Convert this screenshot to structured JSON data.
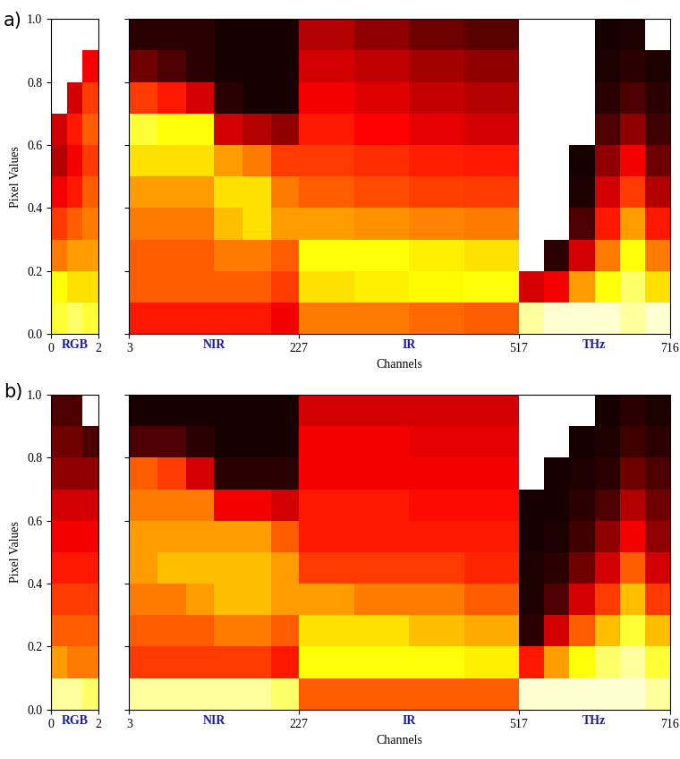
{
  "chart_data": [
    {
      "type": "heatmap",
      "title": "a)",
      "xlabel": "Channels",
      "ylabel": "Pixel Values",
      "ylim": [
        0,
        1
      ],
      "yticks": [
        {
          "value": 0,
          "label": "0.0"
        },
        {
          "value": 0.2,
          "label": "0.2"
        },
        {
          "value": 0.4,
          "label": "0.4"
        },
        {
          "value": 0.6,
          "label": "0.6"
        },
        {
          "value": 0.8,
          "label": "0.8"
        },
        {
          "value": 1,
          "label": "1.0"
        }
      ],
      "clim": [
        0,
        1
      ],
      "y_edges": [
        0,
        0.1,
        0.2,
        0.3,
        0.4,
        0.5,
        0.6,
        0.7,
        0.8,
        0.9,
        1.0
      ],
      "rgb": {
        "name": "RGB",
        "xlim": [
          0,
          2
        ],
        "xticks": [
          0,
          2
        ],
        "x_edges": [
          0,
          0.67,
          1.33,
          2
        ],
        "cells": [
          [
            0.8,
            0.75,
            0.55,
            0.45,
            0.35,
            0.25,
            0.3,
            null,
            null,
            null
          ],
          [
            0.85,
            0.7,
            0.6,
            0.5,
            0.4,
            0.35,
            0.4,
            0.3,
            null,
            null
          ],
          [
            0.8,
            0.7,
            0.6,
            0.55,
            0.5,
            0.45,
            0.5,
            0.45,
            0.35,
            null
          ]
        ]
      },
      "channels": {
        "xlim": [
          3,
          716
        ],
        "xticks": [
          3,
          227,
          517,
          716
        ],
        "sections": [
          {
            "name": "NIR",
            "x_edges": [
              3,
              40,
              78,
              115,
              152,
              190,
              227
            ],
            "cells": [
              [
                0.4,
                0.5,
                0.5,
                0.55,
                0.6,
                0.7,
                0.8,
                0.45,
                0.15,
                0.05
              ],
              [
                0.4,
                0.5,
                0.5,
                0.55,
                0.6,
                0.7,
                0.75,
                0.4,
                0.1,
                0.05
              ],
              [
                0.4,
                0.5,
                0.5,
                0.55,
                0.6,
                0.7,
                0.75,
                0.3,
                0.05,
                0.05
              ],
              [
                0.4,
                0.5,
                0.55,
                0.65,
                0.7,
                0.6,
                0.3,
                0.05,
                0.02,
                0.02
              ],
              [
                0.4,
                0.5,
                0.55,
                0.7,
                0.7,
                0.55,
                0.25,
                0.02,
                0.02,
                0.02
              ],
              [
                0.35,
                0.45,
                0.5,
                0.6,
                0.55,
                0.45,
                0.2,
                0.02,
                0.02,
                0.02
              ]
            ]
          },
          {
            "name": "IR",
            "x_edges": [
              227,
              300,
              372,
              445,
              517
            ],
            "cells": [
              [
                0.55,
                0.7,
                0.75,
                0.6,
                0.5,
                0.45,
                0.4,
                0.35,
                0.3,
                0.25
              ],
              [
                0.55,
                0.72,
                0.75,
                0.58,
                0.48,
                0.43,
                0.37,
                0.32,
                0.27,
                0.2
              ],
              [
                0.52,
                0.74,
                0.72,
                0.56,
                0.46,
                0.41,
                0.33,
                0.28,
                0.23,
                0.15
              ],
              [
                0.5,
                0.75,
                0.7,
                0.55,
                0.45,
                0.4,
                0.3,
                0.25,
                0.2,
                0.12
              ]
            ]
          },
          {
            "name": "THz",
            "x_edges": [
              517,
              550,
              583,
              617,
              650,
              683,
              716
            ],
            "cells": [
              [
                0.9,
                0.3,
                null,
                null,
                null,
                null,
                null,
                null,
                null,
                null
              ],
              [
                0.95,
                0.35,
                0.05,
                null,
                null,
                null,
                null,
                null,
                null,
                null
              ],
              [
                0.95,
                0.6,
                0.3,
                0.1,
                0.03,
                0.02,
                null,
                null,
                null,
                null
              ],
              [
                0.95,
                0.75,
                0.55,
                0.4,
                0.3,
                0.2,
                0.1,
                0.05,
                0.03,
                0.02
              ],
              [
                0.9,
                0.85,
                0.75,
                0.6,
                0.45,
                0.35,
                0.2,
                0.1,
                0.05,
                0.03
              ],
              [
                0.95,
                0.7,
                0.55,
                0.4,
                0.25,
                0.15,
                0.08,
                0.05,
                0.03,
                null
              ]
            ]
          }
        ]
      }
    },
    {
      "type": "heatmap",
      "title": "b)",
      "xlabel": "Channels",
      "ylabel": "Pixel Values",
      "ylim": [
        0,
        1
      ],
      "yticks": [
        {
          "value": 0,
          "label": "0.0"
        },
        {
          "value": 0.2,
          "label": "0.2"
        },
        {
          "value": 0.4,
          "label": "0.4"
        },
        {
          "value": 0.6,
          "label": "0.6"
        },
        {
          "value": 0.8,
          "label": "0.8"
        },
        {
          "value": 1,
          "label": "1.0"
        }
      ],
      "clim": [
        0,
        1
      ],
      "y_edges": [
        0,
        0.1,
        0.2,
        0.3,
        0.4,
        0.5,
        0.6,
        0.7,
        0.8,
        0.9,
        1.0
      ],
      "rgb": {
        "name": "RGB",
        "xlim": [
          0,
          2
        ],
        "xticks": [
          0,
          2
        ],
        "x_edges": [
          0,
          0.67,
          1.33,
          2
        ],
        "cells": [
          [
            0.9,
            0.6,
            0.5,
            0.45,
            0.4,
            0.35,
            0.3,
            0.2,
            0.15,
            0.1
          ],
          [
            0.9,
            0.55,
            0.5,
            0.45,
            0.4,
            0.35,
            0.3,
            0.2,
            0.15,
            0.1
          ],
          [
            0.85,
            0.55,
            0.5,
            0.45,
            0.4,
            0.35,
            0.3,
            0.2,
            0.1,
            null
          ]
        ]
      },
      "channels": {
        "xlim": [
          3,
          716
        ],
        "xticks": [
          3,
          227,
          517,
          716
        ],
        "sections": [
          {
            "name": "NIR",
            "x_edges": [
              3,
              40,
              78,
              115,
              152,
              190,
              227
            ],
            "cells": [
              [
                0.9,
                0.45,
                0.5,
                0.55,
                0.6,
                0.6,
                0.55,
                0.5,
                0.1,
                0.02
              ],
              [
                0.9,
                0.45,
                0.5,
                0.55,
                0.65,
                0.6,
                0.55,
                0.45,
                0.1,
                0.02
              ],
              [
                0.9,
                0.45,
                0.5,
                0.6,
                0.65,
                0.6,
                0.55,
                0.3,
                0.05,
                0.02
              ],
              [
                0.9,
                0.45,
                0.55,
                0.65,
                0.65,
                0.6,
                0.35,
                0.05,
                0.02,
                0.02
              ],
              [
                0.9,
                0.45,
                0.55,
                0.65,
                0.65,
                0.6,
                0.35,
                0.05,
                0.02,
                0.02
              ],
              [
                0.85,
                0.4,
                0.5,
                0.6,
                0.6,
                0.5,
                0.3,
                0.05,
                0.02,
                0.02
              ]
            ]
          },
          {
            "name": "IR",
            "x_edges": [
              227,
              300,
              372,
              445,
              517
            ],
            "cells": [
              [
                0.5,
                0.75,
                0.7,
                0.6,
                0.45,
                0.4,
                0.4,
                0.35,
                0.35,
                0.3
              ],
              [
                0.5,
                0.75,
                0.7,
                0.55,
                0.45,
                0.4,
                0.4,
                0.35,
                0.35,
                0.3
              ],
              [
                0.5,
                0.75,
                0.65,
                0.55,
                0.45,
                0.4,
                0.38,
                0.35,
                0.33,
                0.3
              ],
              [
                0.5,
                0.72,
                0.62,
                0.5,
                0.42,
                0.4,
                0.38,
                0.35,
                0.33,
                0.3
              ]
            ]
          },
          {
            "name": "THz",
            "x_edges": [
              517,
              550,
              583,
              617,
              650,
              683,
              716
            ],
            "cells": [
              [
                0.95,
                0.4,
                0.05,
                0.03,
                0.03,
                0.02,
                0.02,
                null,
                null,
                null
              ],
              [
                0.95,
                0.6,
                0.3,
                0.1,
                0.05,
                0.03,
                0.02,
                0.02,
                null,
                null
              ],
              [
                0.95,
                0.75,
                0.5,
                0.3,
                0.15,
                0.08,
                0.05,
                0.03,
                0.02,
                null
              ],
              [
                0.95,
                0.85,
                0.65,
                0.45,
                0.3,
                0.2,
                0.1,
                0.05,
                0.03,
                0.02
              ],
              [
                0.95,
                0.9,
                0.8,
                0.65,
                0.5,
                0.35,
                0.25,
                0.15,
                0.08,
                0.05
              ],
              [
                0.9,
                0.8,
                0.65,
                0.45,
                0.3,
                0.2,
                0.15,
                0.1,
                0.05,
                0.03
              ]
            ]
          }
        ]
      }
    }
  ]
}
